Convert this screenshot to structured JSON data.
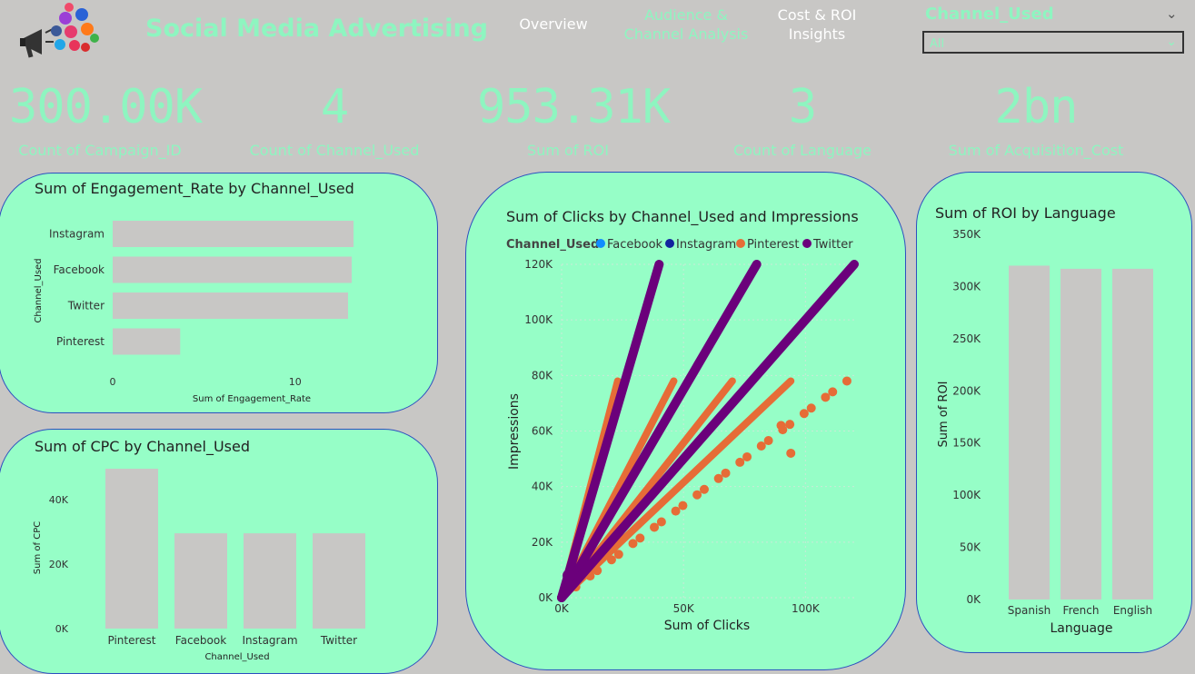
{
  "header": {
    "title": "Social Media Advertising",
    "nav": [
      "Overview",
      "Audience &\nChannel Analysis",
      "Cost & ROI\nInsights"
    ],
    "filter_label": "Channel_Used",
    "filter_value": "All",
    "logo_icon": "megaphone-social-icons"
  },
  "kpis": [
    {
      "value": "300.00K",
      "label": "Count of Campaign_ID"
    },
    {
      "value": "4",
      "label": "Count of Channel_Used"
    },
    {
      "value": "953.31K",
      "label": "Sum of ROI"
    },
    {
      "value": "3",
      "label": "Count of Language"
    },
    {
      "value": "2bn",
      "label": "Sum of Acquisition_Cost"
    }
  ],
  "colors": {
    "accent": "#8ef5c0",
    "card": "#96fec7",
    "bar": "#c8c7c5",
    "facebook": "#118dff",
    "instagram": "#12239e",
    "pinterest": "#e66c37",
    "twitter": "#6b007b"
  },
  "chart_data": [
    {
      "type": "bar",
      "orientation": "horizontal",
      "title": "Sum of Engagement_Rate by Channel_Used",
      "xlabel": "Sum of Engagement_Rate",
      "ylabel": "Channel_Used",
      "categories": [
        "Instagram",
        "Facebook",
        "Twitter",
        "Pinterest"
      ],
      "values": [
        13.2,
        13.1,
        12.9,
        3.7
      ],
      "xticks": [
        "0",
        "10"
      ],
      "xlim": [
        0,
        13.2
      ]
    },
    {
      "type": "bar",
      "title": "Sum of CPC by Channel_Used",
      "xlabel": "Channel_Used",
      "ylabel": "Sum of CPC",
      "categories": [
        "Pinterest",
        "Facebook",
        "Instagram",
        "Twitter"
      ],
      "values": [
        49500,
        29500,
        29500,
        29500
      ],
      "yticks": [
        "0K",
        "20K",
        "40K"
      ],
      "ylim": [
        0,
        49500
      ]
    },
    {
      "type": "scatter",
      "title": "Sum of Clicks by Channel_Used and Impressions",
      "legend_title": "Channel_Used",
      "legend": [
        "Facebook",
        "Instagram",
        "Pinterest",
        "Twitter"
      ],
      "xlabel": "Sum of Clicks",
      "ylabel": "Impressions",
      "xticks": [
        "0K",
        "50K",
        "100K"
      ],
      "yticks": [
        "0K",
        "20K",
        "40K",
        "60K",
        "80K",
        "100K",
        "120K"
      ],
      "xlim": [
        0,
        120000
      ],
      "ylim": [
        0,
        120000
      ],
      "series": [
        {
          "name": "Pinterest",
          "lines": [
            {
              "x0": 0,
              "y0": 0,
              "x1": 23000,
              "y1": 78000,
              "dense": true
            },
            {
              "x0": 0,
              "y0": 0,
              "x1": 46000,
              "y1": 78000,
              "dense": true
            },
            {
              "x0": 0,
              "y0": 0,
              "x1": 70000,
              "y1": 78000,
              "dense": true
            },
            {
              "x0": 0,
              "y0": 0,
              "x1": 94000,
              "y1": 78000,
              "dense": true
            },
            {
              "x0": 0,
              "y0": 0,
              "x1": 117000,
              "y1": 78000,
              "dense": false
            }
          ],
          "outliers": [
            {
              "x": 94000,
              "y": 52000
            },
            {
              "x": 90000,
              "y": 62000
            }
          ]
        },
        {
          "name": "Twitter",
          "lines": [
            {
              "x0": 0,
              "y0": 0,
              "x1": 40000,
              "y1": 120000,
              "dense": true
            },
            {
              "x0": 0,
              "y0": 0,
              "x1": 80000,
              "y1": 120000,
              "dense": true
            },
            {
              "x0": 0,
              "y0": 0,
              "x1": 120000,
              "y1": 120000,
              "dense": true
            }
          ]
        }
      ]
    },
    {
      "type": "bar",
      "title": "Sum of ROI by Language",
      "xlabel": "Language",
      "ylabel": "Sum of ROI",
      "categories": [
        "Spanish",
        "French",
        "English"
      ],
      "values": [
        320000,
        317000,
        317000
      ],
      "yticks": [
        "0K",
        "50K",
        "100K",
        "150K",
        "200K",
        "250K",
        "300K",
        "350K"
      ],
      "ylim": [
        0,
        350000
      ]
    }
  ]
}
